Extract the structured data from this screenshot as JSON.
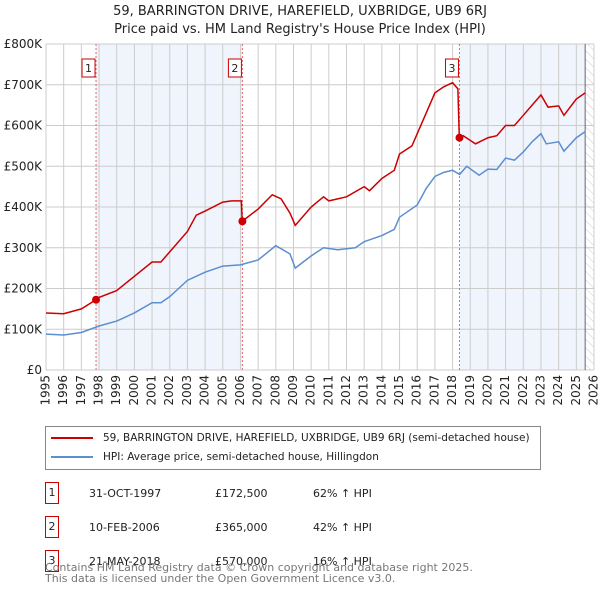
{
  "chart_data": {
    "type": "line",
    "title": "59, BARRINGTON DRIVE, HAREFIELD, UXBRIDGE, UB9 6RJ",
    "subtitle": "Price paid vs. HM Land Registry's House Price Index (HPI)",
    "ylim": [
      0,
      800000
    ],
    "xlim": [
      1995,
      2026
    ],
    "yticks": [
      {
        "v": 0,
        "label": "£0"
      },
      {
        "v": 100000,
        "label": "£100K"
      },
      {
        "v": 200000,
        "label": "£200K"
      },
      {
        "v": 300000,
        "label": "£300K"
      },
      {
        "v": 400000,
        "label": "£400K"
      },
      {
        "v": 500000,
        "label": "£500K"
      },
      {
        "v": 600000,
        "label": "£600K"
      },
      {
        "v": 700000,
        "label": "£700K"
      },
      {
        "v": 800000,
        "label": "£800K"
      }
    ],
    "xticks": [
      "1995",
      "1996",
      "1997",
      "1998",
      "1999",
      "2000",
      "2001",
      "2002",
      "2003",
      "2004",
      "2005",
      "2006",
      "2007",
      "2008",
      "2009",
      "2010",
      "2011",
      "2012",
      "2013",
      "2014",
      "2015",
      "2016",
      "2017",
      "2018",
      "2019",
      "2020",
      "2021",
      "2022",
      "2023",
      "2024",
      "2025",
      "2026"
    ],
    "data_end": 2025.5,
    "series": [
      {
        "name": "59, BARRINGTON DRIVE, HAREFIELD, UXBRIDGE, UB9 6RJ (semi-detached house)",
        "color": "#cc0000",
        "x": [
          1995,
          1996,
          1997,
          1997.83,
          1998,
          1999,
          2000,
          2001,
          2001.5,
          2002,
          2003,
          2003.5,
          2004,
          2005,
          2005.5,
          2006.05,
          2006.1,
          2007,
          2007.8,
          2008.3,
          2008.8,
          2009.1,
          2010,
          2010.7,
          2011,
          2012,
          2013,
          2013.3,
          2014,
          2014.7,
          2015,
          2015.7,
          2016,
          2016.5,
          2017,
          2017.5,
          2018,
          2018.3,
          2018.38,
          2018.6,
          2019.3,
          2020,
          2020.5,
          2021,
          2021.5,
          2022,
          2022.5,
          2023,
          2023.4,
          2024,
          2024.3,
          2025,
          2025.5
        ],
        "y": [
          140000,
          138000,
          150000,
          172500,
          178000,
          195000,
          230000,
          265000,
          265000,
          290000,
          340000,
          380000,
          390000,
          412000,
          415000,
          415000,
          365000,
          395000,
          430000,
          420000,
          385000,
          355000,
          400000,
          425000,
          415000,
          425000,
          450000,
          440000,
          470000,
          490000,
          530000,
          550000,
          580000,
          630000,
          680000,
          695000,
          705000,
          690000,
          570000,
          575000,
          555000,
          570000,
          575000,
          600000,
          600000,
          625000,
          650000,
          675000,
          645000,
          648000,
          625000,
          665000,
          680000
        ]
      },
      {
        "name": "HPI: Average price, semi-detached house, Hillingdon",
        "color": "#5b8fd0",
        "x": [
          1995,
          1996,
          1997,
          1998,
          1999,
          2000,
          2001,
          2001.5,
          2002,
          2003,
          2004,
          2005,
          2006,
          2007,
          2008,
          2008.8,
          2009.1,
          2010,
          2010.7,
          2011.5,
          2012.5,
          2013,
          2014,
          2014.7,
          2015,
          2016,
          2016.5,
          2017,
          2017.5,
          2018,
          2018.4,
          2018.8,
          2019.5,
          2020,
          2020.5,
          2021,
          2021.5,
          2022,
          2022.5,
          2023,
          2023.3,
          2024,
          2024.3,
          2025,
          2025.5
        ],
        "y": [
          88000,
          86000,
          92000,
          108000,
          120000,
          140000,
          165000,
          165000,
          180000,
          220000,
          240000,
          255000,
          258000,
          270000,
          305000,
          285000,
          250000,
          280000,
          300000,
          295000,
          300000,
          315000,
          330000,
          345000,
          375000,
          405000,
          445000,
          475000,
          485000,
          490000,
          480000,
          500000,
          478000,
          493000,
          492000,
          520000,
          515000,
          535000,
          560000,
          580000,
          555000,
          560000,
          537000,
          570000,
          585000
        ]
      }
    ],
    "sales": [
      {
        "n": "1",
        "x": 1997.83,
        "price": 172500,
        "date": "31-OCT-1997",
        "price_label": "£172,500",
        "hpi": "62% ↑ HPI"
      },
      {
        "n": "2",
        "x": 2006.11,
        "price": 365000,
        "date": "10-FEB-2006",
        "price_label": "£365,000",
        "hpi": "42% ↑ HPI"
      },
      {
        "n": "3",
        "x": 2018.39,
        "price": 570000,
        "date": "21-MAY-2018",
        "price_label": "£570,000",
        "hpi": "16% ↑ HPI"
      }
    ]
  },
  "footer": {
    "line1": "Contains HM Land Registry data © Crown copyright and database right 2025.",
    "line2": "This data is licensed under the Open Government Licence v3.0."
  }
}
